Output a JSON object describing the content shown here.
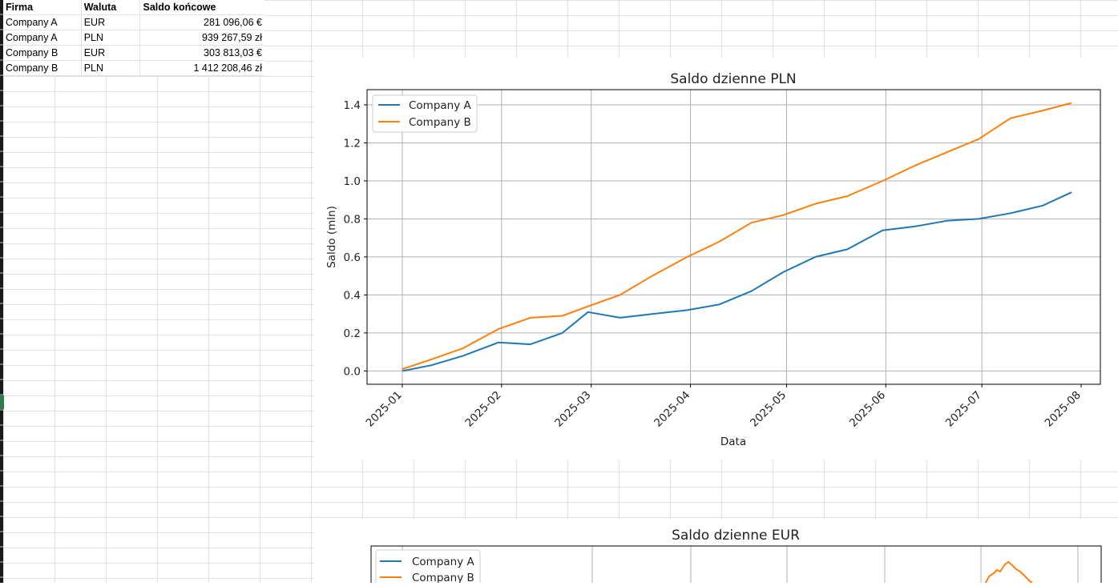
{
  "table": {
    "headers": [
      "Firma",
      "Waluta",
      "Saldo końcowe"
    ],
    "rows": [
      [
        "Company A",
        "EUR",
        "281 096,06 €"
      ],
      [
        "Company A",
        "PLN",
        "939 267,59 zł"
      ],
      [
        "Company B",
        "EUR",
        "303 813,03 €"
      ],
      [
        "Company B",
        "PLN",
        "1 412 208,46 zł"
      ]
    ]
  },
  "colors": {
    "company_a": "#1f77b4",
    "company_b": "#ff7f0e",
    "grid": "#b0b0b0",
    "sheet_grid": "#e1e1e1"
  },
  "chart_data": [
    {
      "type": "line",
      "title": "Saldo dzienne PLN",
      "xlabel": "Data",
      "ylabel": "Saldo (mln)",
      "x_ticks": [
        "2025-01",
        "2025-02",
        "2025-03",
        "2025-04",
        "2025-05",
        "2025-06",
        "2025-07",
        "2025-08"
      ],
      "y_ticks": [
        "0.0",
        "0.2",
        "0.4",
        "0.6",
        "0.8",
        "1.0",
        "1.2",
        "1.4"
      ],
      "xlim": [
        "2024-12-21",
        "2025-08-07"
      ],
      "ylim": [
        -0.07,
        1.48
      ],
      "grid": true,
      "legend": "top-left",
      "series": [
        {
          "name": "Company A",
          "x": [
            "2025-01-01",
            "2025-01-10",
            "2025-01-20",
            "2025-01-31",
            "2025-02-10",
            "2025-02-20",
            "2025-02-28",
            "2025-03-10",
            "2025-03-20",
            "2025-03-31",
            "2025-04-10",
            "2025-04-20",
            "2025-04-30",
            "2025-05-10",
            "2025-05-20",
            "2025-05-31",
            "2025-06-10",
            "2025-06-20",
            "2025-06-30",
            "2025-07-10",
            "2025-07-20",
            "2025-07-29"
          ],
          "values": [
            0.0,
            0.03,
            0.08,
            0.15,
            0.14,
            0.2,
            0.31,
            0.28,
            0.3,
            0.32,
            0.35,
            0.42,
            0.52,
            0.6,
            0.64,
            0.74,
            0.76,
            0.79,
            0.8,
            0.83,
            0.87,
            0.94
          ]
        },
        {
          "name": "Company B",
          "x": [
            "2025-01-01",
            "2025-01-10",
            "2025-01-20",
            "2025-01-31",
            "2025-02-10",
            "2025-02-20",
            "2025-02-28",
            "2025-03-10",
            "2025-03-20",
            "2025-03-31",
            "2025-04-10",
            "2025-04-20",
            "2025-04-30",
            "2025-05-10",
            "2025-05-20",
            "2025-05-31",
            "2025-06-10",
            "2025-06-20",
            "2025-06-30",
            "2025-07-10",
            "2025-07-20",
            "2025-07-29"
          ],
          "values": [
            0.01,
            0.06,
            0.12,
            0.22,
            0.28,
            0.29,
            0.34,
            0.4,
            0.5,
            0.6,
            0.68,
            0.78,
            0.82,
            0.88,
            0.92,
            1.0,
            1.08,
            1.15,
            1.22,
            1.33,
            1.37,
            1.41
          ]
        }
      ]
    },
    {
      "type": "line",
      "title": "Saldo dzienne EUR",
      "legend": "top-left",
      "series": [
        {
          "name": "Company A",
          "values": []
        },
        {
          "name": "Company B",
          "values": []
        }
      ]
    }
  ]
}
